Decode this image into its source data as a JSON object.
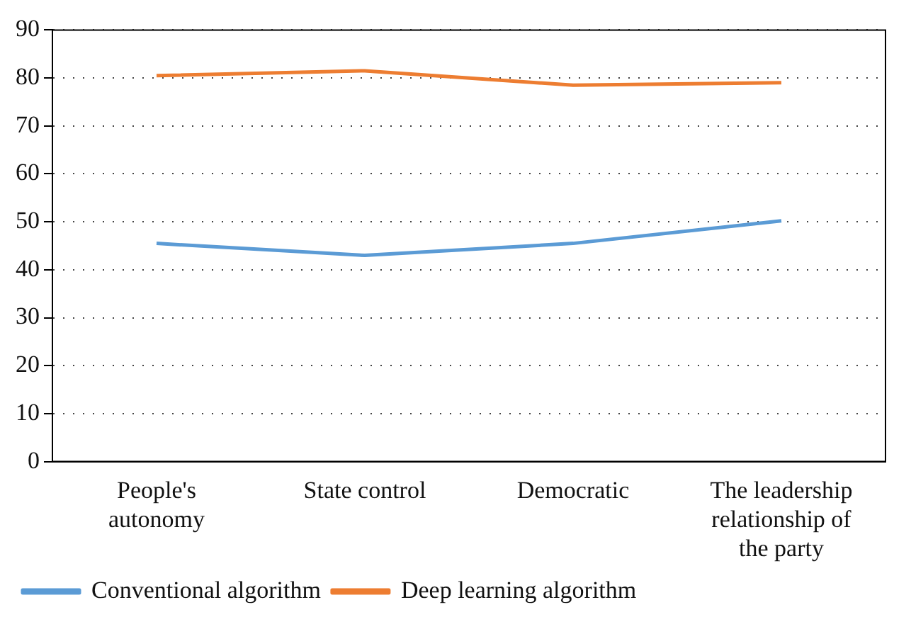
{
  "chart_data": {
    "type": "line",
    "categories": [
      "People's autonomy",
      "State control",
      "Democratic",
      "The leadership relationship of the party"
    ],
    "series": [
      {
        "name": "Conventional algorithm",
        "color": "#5b9bd5",
        "values": [
          45.5,
          43,
          45.5,
          50.2
        ]
      },
      {
        "name": "Deep learning algorithm",
        "color": "#ed7d31",
        "values": [
          80.5,
          81.5,
          78.5,
          79
        ]
      }
    ],
    "ylim": [
      0,
      90
    ],
    "yticks": [
      0,
      10,
      20,
      30,
      40,
      50,
      60,
      70,
      80,
      90
    ],
    "grid": "y",
    "legend": "bottom left",
    "marker": "none",
    "line_style": "solid"
  }
}
